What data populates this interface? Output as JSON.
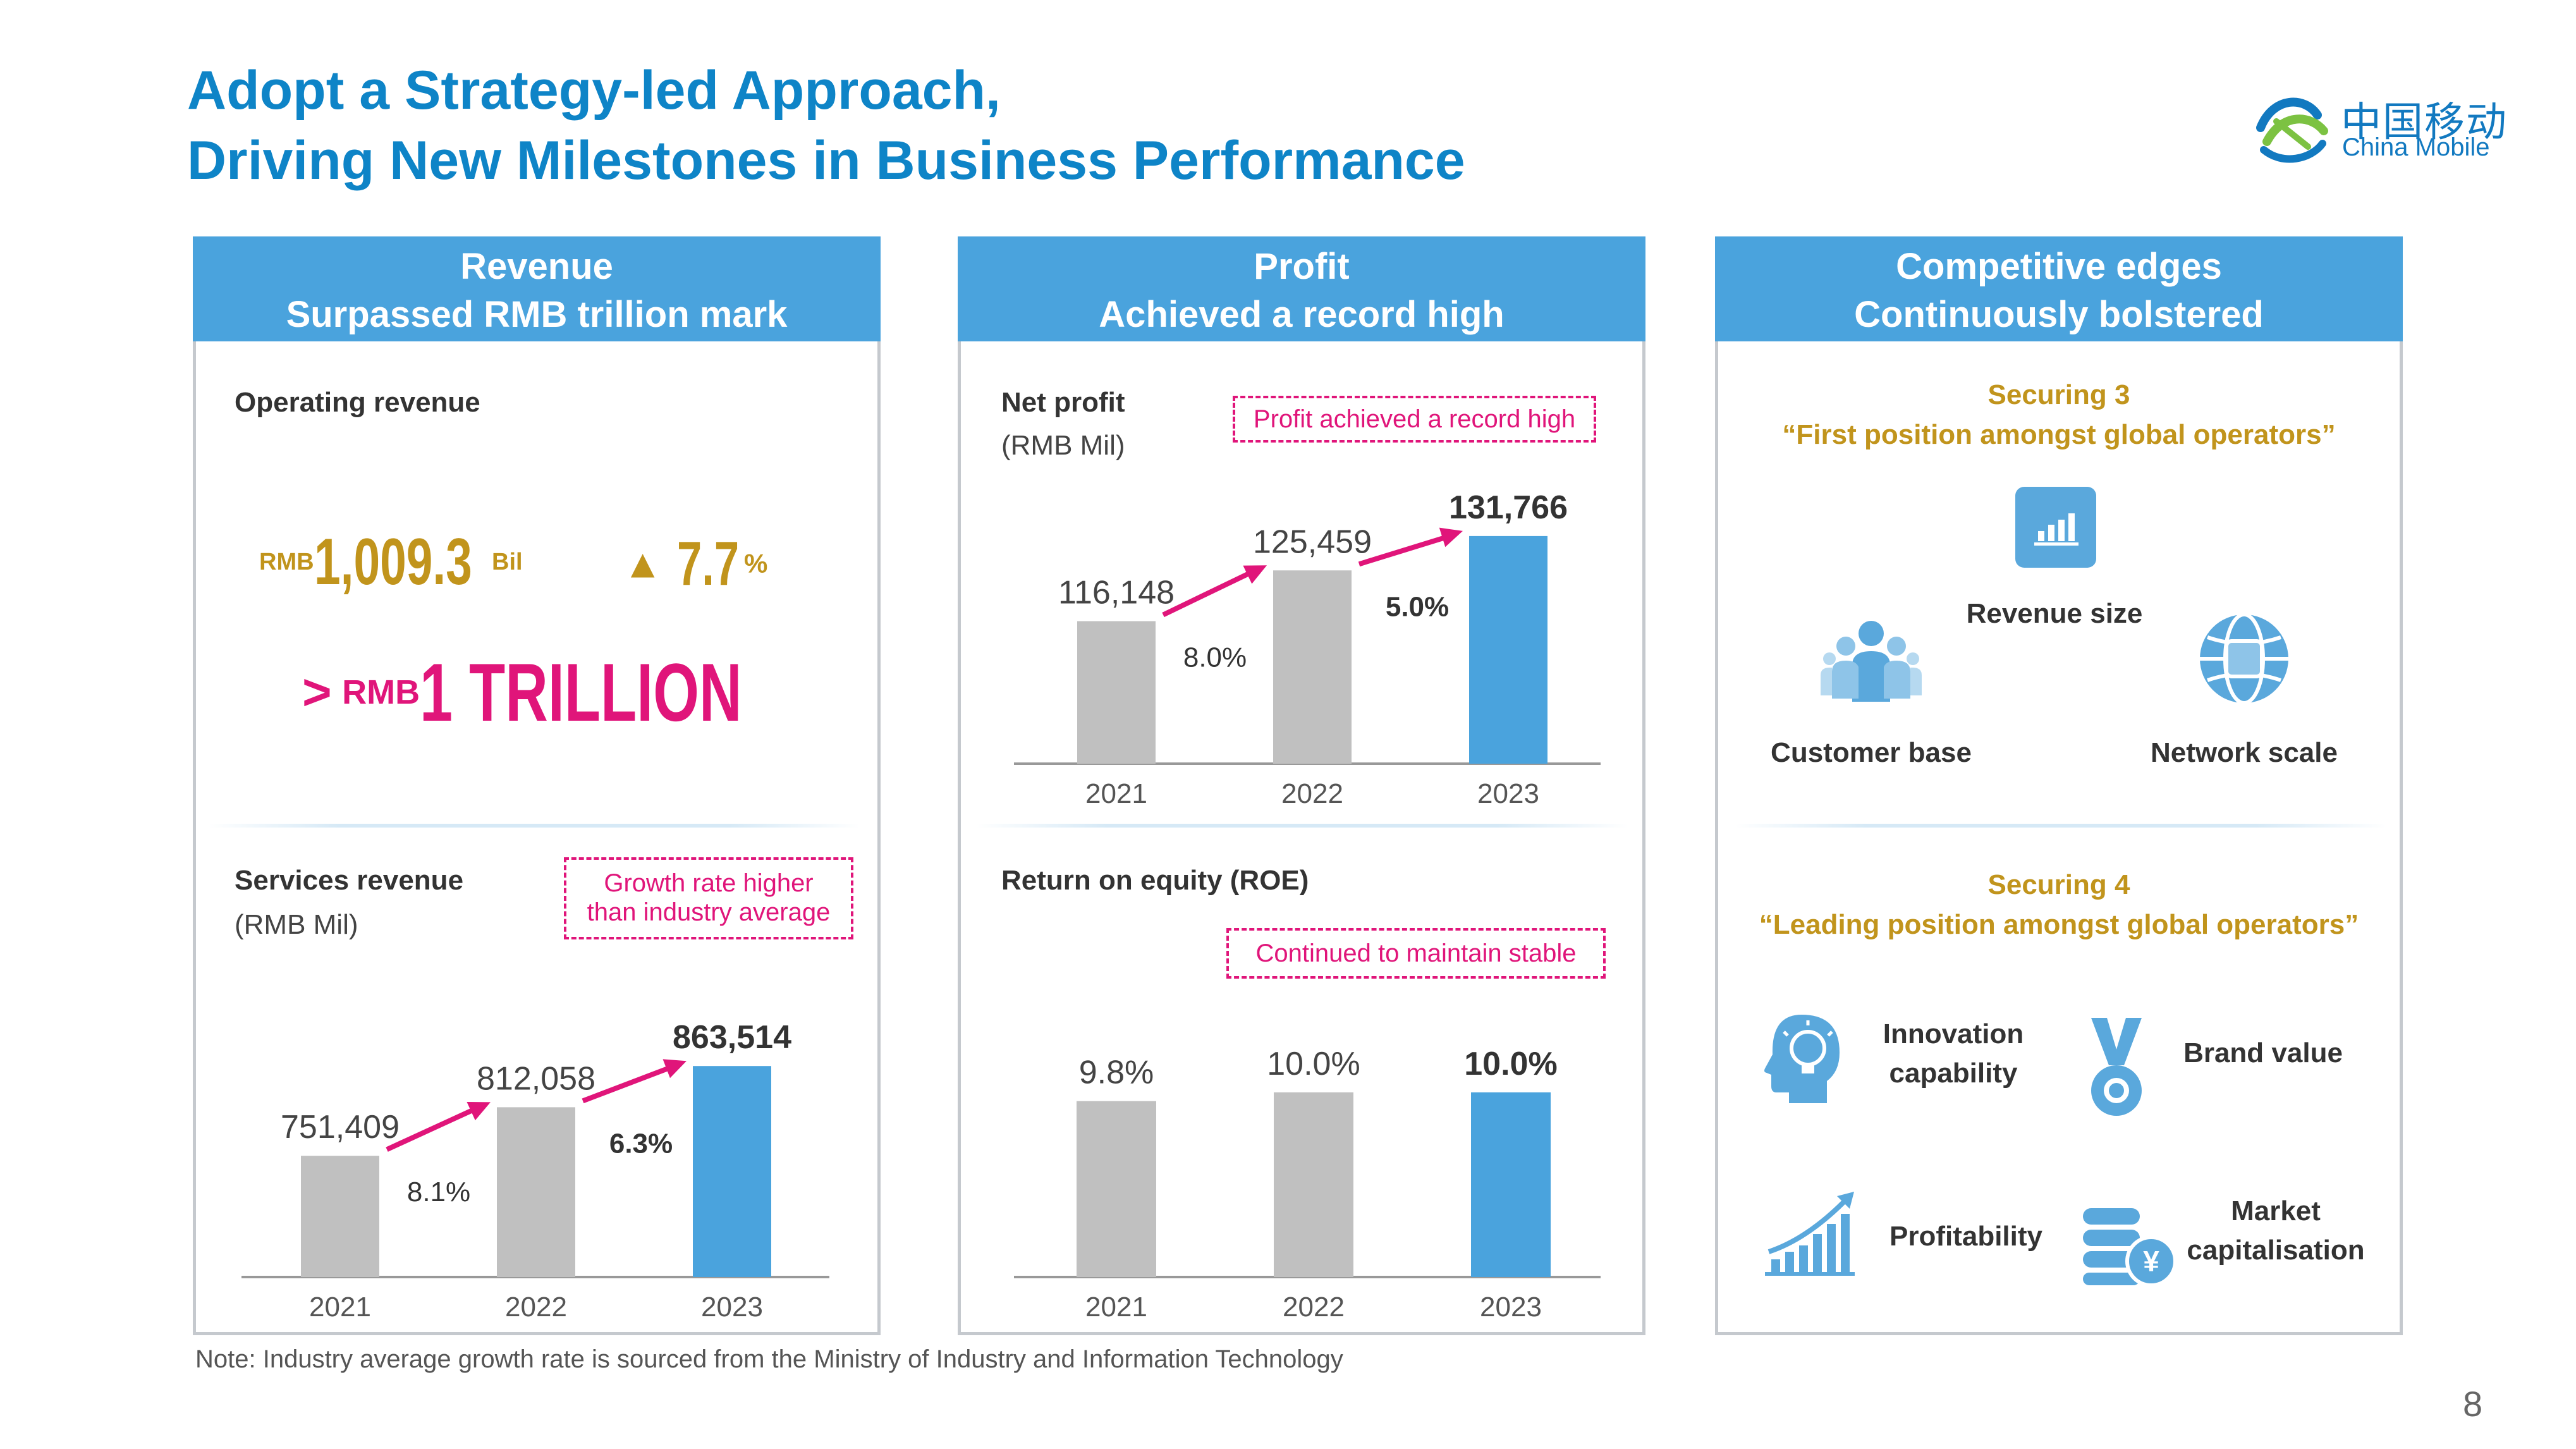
{
  "title_line1": "Adopt a Strategy-led Approach,",
  "title_line2": "Driving New Milestones in Business Performance",
  "logo": {
    "cn": "中国移动",
    "en": "China Mobile",
    "icon": "china-mobile-logo-icon"
  },
  "colors": {
    "title": "#0e84c7",
    "header_bg": "#4aa3dd",
    "bar_gray": "#c0c0c0",
    "bar_blue": "#4aa3dd",
    "highlight_pink": "#e0157a",
    "gold": "#c1941c"
  },
  "revenue_panel": {
    "header_line1": "Revenue",
    "header_line2": "Surpassed RMB trillion mark",
    "operating_label": "Operating revenue",
    "op_currency": "RMB",
    "op_value": "1,009.3",
    "op_unit": "Bil",
    "op_growth": "7.7",
    "op_growth_unit": "%",
    "milestone_gt": ">",
    "milestone_currency": "RMB",
    "milestone_value": "1 TRILLION",
    "services_label": "Services revenue",
    "services_unit": "(RMB Mil)",
    "services_callout_line1": "Growth rate higher",
    "services_callout_line2": "than industry average"
  },
  "profit_panel": {
    "header_line1": "Profit",
    "header_line2": "Achieved a record high",
    "net_label": "Net profit",
    "net_unit": "(RMB Mil)",
    "net_callout": "Profit achieved a record high",
    "roe_label": "Return on equity (ROE)",
    "roe_callout": "Continued to maintain stable"
  },
  "edges_panel": {
    "header_line1": "Competitive edges",
    "header_line2": "Continuously bolstered",
    "securing3_title": "Securing 3",
    "securing3_sub": "“First position amongst global operators”",
    "s3_items": [
      {
        "label": "Revenue size",
        "icon": "bar-chart-icon"
      },
      {
        "label": "Customer base",
        "icon": "people-icon"
      },
      {
        "label": "Network scale",
        "icon": "globe-icon"
      }
    ],
    "securing4_title": "Securing 4",
    "securing4_sub": "“Leading position amongst global operators”",
    "s4_items": [
      {
        "label_line1": "Innovation",
        "label_line2": "capability",
        "icon": "lightbulb-head-icon"
      },
      {
        "label_line1": "Brand value",
        "label_line2": "",
        "icon": "medal-icon"
      },
      {
        "label_line1": "Profitability",
        "label_line2": "",
        "icon": "rising-chart-icon"
      },
      {
        "label_line1": "Market",
        "label_line2": "capitalisation",
        "icon": "coins-yuan-icon"
      }
    ]
  },
  "note": "Note: Industry average growth rate is sourced from the Ministry of Industry and Information Technology",
  "page_number": "8",
  "chart_data": [
    {
      "type": "bar",
      "categories": [
        "2021",
        "2022",
        "2023"
      ],
      "values": [
        751409,
        812058,
        863514
      ],
      "value_labels": [
        "751,409",
        "812,058",
        "863,514"
      ],
      "growth_labels": [
        "8.1%",
        "6.3%"
      ],
      "title": "Services revenue",
      "ylabel": "(RMB Mil)",
      "ylim": [
        600000,
        900000
      ]
    },
    {
      "type": "bar",
      "categories": [
        "2021",
        "2022",
        "2023"
      ],
      "values": [
        116148,
        125459,
        131766
      ],
      "value_labels": [
        "116,148",
        "125,459",
        "131,766"
      ],
      "growth_labels": [
        "8.0%",
        "5.0%"
      ],
      "title": "Net profit",
      "ylabel": "(RMB Mil)",
      "ylim": [
        90000,
        135000
      ]
    },
    {
      "type": "bar",
      "categories": [
        "2021",
        "2022",
        "2023"
      ],
      "values": [
        9.8,
        10.0,
        10.0
      ],
      "value_labels": [
        "9.8%",
        "10.0%",
        "10.0%"
      ],
      "title": "Return on equity (ROE)",
      "ylim": [
        5.8,
        10.4
      ]
    }
  ]
}
